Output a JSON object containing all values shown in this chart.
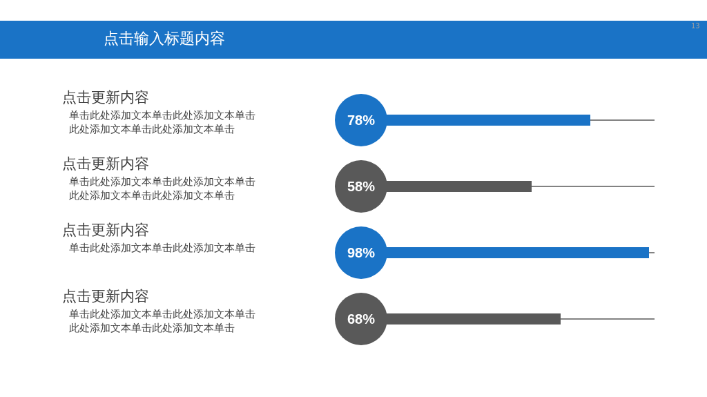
{
  "chart_data": {
    "type": "bar",
    "orientation": "horizontal",
    "title": "点击输入标题内容",
    "categories": [
      "点击更新内容",
      "点击更新内容",
      "点击更新内容",
      "点击更新内容"
    ],
    "values": [
      78,
      58,
      98,
      68
    ],
    "colors": [
      "#1a73c6",
      "#595959",
      "#1a73c6",
      "#595959"
    ],
    "value_labels": [
      "78%",
      "58%",
      "98%",
      "68%"
    ],
    "xlim": [
      0,
      100
    ],
    "tick_labels": false,
    "grid": false,
    "legend": false,
    "annotations": [
      "单击此处添加文本单击此处添加文本单击此处添加文本单击此处添加文本单击",
      "单击此处添加文本单击此处添加文本单击此处添加文本单击此处添加文本单击",
      "单击此处添加文本单击此处添加文本单击",
      "单击此处添加文本单击此处添加文本单击此处添加文本单击此处添加文本单击",
      "13"
    ]
  }
}
